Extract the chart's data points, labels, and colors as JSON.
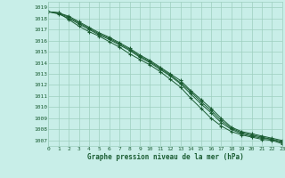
{
  "bg_color": "#c8eee8",
  "grid_color": "#9ecfbf",
  "line_color": "#1a5c32",
  "text_color": "#1a5c32",
  "xlabel": "Graphe pression niveau de la mer (hPa)",
  "xlim": [
    0,
    23
  ],
  "ylim": [
    1006.5,
    1019.5
  ],
  "yticks": [
    1007,
    1008,
    1009,
    1010,
    1011,
    1012,
    1013,
    1014,
    1015,
    1016,
    1017,
    1018,
    1019
  ],
  "xticks": [
    0,
    1,
    2,
    3,
    4,
    5,
    6,
    7,
    8,
    9,
    10,
    11,
    12,
    13,
    14,
    15,
    16,
    17,
    18,
    19,
    20,
    21,
    22,
    23
  ],
  "series": [
    [
      1018.6,
      1018.5,
      1017.9,
      1017.3,
      1016.8,
      1016.4,
      1015.9,
      1015.4,
      1014.8,
      1014.3,
      1013.8,
      1013.2,
      1012.5,
      1011.8,
      1010.8,
      1009.9,
      1009.0,
      1008.3,
      1007.8,
      1007.5,
      1007.3,
      1007.1,
      1007.0,
      1006.7
    ],
    [
      1018.6,
      1018.4,
      1018.0,
      1017.5,
      1017.0,
      1016.5,
      1016.1,
      1015.6,
      1015.1,
      1014.5,
      1014.0,
      1013.4,
      1012.8,
      1012.1,
      1011.2,
      1010.3,
      1009.5,
      1008.6,
      1008.0,
      1007.6,
      1007.4,
      1007.2,
      1007.1,
      1006.8
    ],
    [
      1018.6,
      1018.5,
      1018.1,
      1017.6,
      1017.1,
      1016.6,
      1016.2,
      1015.7,
      1015.2,
      1014.6,
      1014.1,
      1013.5,
      1012.9,
      1012.2,
      1011.4,
      1010.5,
      1009.7,
      1008.8,
      1008.1,
      1007.7,
      1007.5,
      1007.3,
      1007.1,
      1006.9
    ],
    [
      1018.6,
      1018.5,
      1018.2,
      1017.7,
      1017.2,
      1016.7,
      1016.3,
      1015.8,
      1015.3,
      1014.7,
      1014.2,
      1013.6,
      1013.0,
      1012.4,
      1011.5,
      1010.7,
      1009.9,
      1009.0,
      1008.2,
      1007.8,
      1007.6,
      1007.4,
      1007.2,
      1007.0
    ]
  ]
}
